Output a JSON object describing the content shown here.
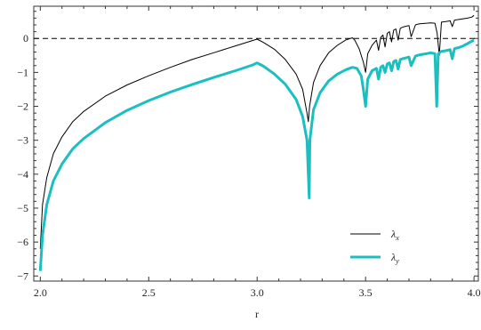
{
  "chart_data": {
    "type": "line",
    "title": "",
    "xlabel": "r",
    "ylabel": "",
    "xlim": [
      1.97,
      4.02
    ],
    "ylim": [
      -7.15,
      0.95
    ],
    "xticks": [
      2.0,
      2.5,
      3.0,
      3.5,
      4.0
    ],
    "xtick_labels": [
      "2.0",
      "2.5",
      "3.0",
      "3.5",
      "4.0"
    ],
    "yticks": [
      0,
      -1,
      -2,
      -3,
      -4,
      -5,
      -6,
      -7
    ],
    "ytick_labels": [
      "0",
      "−1",
      "−2",
      "−3",
      "−4",
      "−5",
      "−6",
      "−7"
    ],
    "reference_line": {
      "y": 0,
      "style": "dashed"
    },
    "legend": {
      "position": "bottom-right"
    },
    "grid": false,
    "series": [
      {
        "name": "λx",
        "name_main": "λ",
        "name_sub": "x",
        "color": "#000000",
        "x": [
          2.0,
          2.01,
          2.03,
          2.06,
          2.1,
          2.15,
          2.2,
          2.3,
          2.4,
          2.5,
          2.6,
          2.7,
          2.8,
          2.9,
          2.98,
          3.0,
          3.03,
          3.08,
          3.13,
          3.18,
          3.21,
          3.23,
          3.236,
          3.242,
          3.26,
          3.29,
          3.33,
          3.37,
          3.41,
          3.44,
          3.45,
          3.47,
          3.49,
          3.5,
          3.51,
          3.53,
          3.55,
          3.56,
          3.57,
          3.58,
          3.59,
          3.6,
          3.61,
          3.62,
          3.63,
          3.64,
          3.65,
          3.66,
          3.67,
          3.68,
          3.7,
          3.71,
          3.73,
          3.74,
          3.75,
          3.78,
          3.8,
          3.82,
          3.83,
          3.84,
          3.85,
          3.87,
          3.89,
          3.9,
          3.91,
          3.92,
          3.95,
          3.97,
          3.99,
          4.0
        ],
        "y": [
          -6.2,
          -4.9,
          -4.1,
          -3.4,
          -2.9,
          -2.45,
          -2.15,
          -1.7,
          -1.37,
          -1.1,
          -0.85,
          -0.62,
          -0.42,
          -0.22,
          -0.06,
          -0.02,
          -0.12,
          -0.32,
          -0.62,
          -1.05,
          -1.5,
          -2.2,
          -2.45,
          -2.0,
          -1.3,
          -0.8,
          -0.42,
          -0.2,
          -0.04,
          0.02,
          -0.05,
          -0.3,
          -0.7,
          -1.0,
          -0.45,
          -0.2,
          -0.05,
          -0.35,
          0.03,
          0.1,
          -0.25,
          0.15,
          0.2,
          -0.1,
          0.25,
          0.28,
          -0.05,
          0.3,
          0.33,
          0.35,
          0.38,
          0.05,
          0.4,
          0.42,
          0.43,
          0.45,
          0.46,
          0.45,
          0.15,
          -0.5,
          0.48,
          0.5,
          0.52,
          0.35,
          0.54,
          0.55,
          0.58,
          0.6,
          0.63,
          0.68
        ]
      },
      {
        "name": "λy",
        "name_main": "λ",
        "name_sub": "y",
        "color": "#1bbfbf",
        "x": [
          2.0,
          2.01,
          2.03,
          2.06,
          2.1,
          2.15,
          2.2,
          2.3,
          2.4,
          2.5,
          2.6,
          2.7,
          2.8,
          2.9,
          2.98,
          3.0,
          3.03,
          3.08,
          3.13,
          3.18,
          3.21,
          3.23,
          3.24,
          3.243,
          3.26,
          3.29,
          3.33,
          3.37,
          3.41,
          3.44,
          3.46,
          3.48,
          3.49,
          3.5,
          3.51,
          3.53,
          3.55,
          3.56,
          3.57,
          3.58,
          3.59,
          3.6,
          3.61,
          3.62,
          3.63,
          3.64,
          3.65,
          3.66,
          3.67,
          3.68,
          3.7,
          3.71,
          3.73,
          3.74,
          3.75,
          3.78,
          3.8,
          3.82,
          3.828,
          3.835,
          3.85,
          3.87,
          3.89,
          3.9,
          3.91,
          3.93,
          3.95,
          3.97,
          3.99,
          4.0
        ],
        "y": [
          -6.85,
          -5.8,
          -4.9,
          -4.2,
          -3.7,
          -3.25,
          -2.95,
          -2.48,
          -2.12,
          -1.83,
          -1.58,
          -1.36,
          -1.15,
          -0.95,
          -0.78,
          -0.72,
          -0.82,
          -1.05,
          -1.35,
          -1.8,
          -2.3,
          -3.0,
          -4.7,
          -3.0,
          -2.1,
          -1.6,
          -1.25,
          -1.05,
          -0.92,
          -0.85,
          -0.88,
          -1.1,
          -1.5,
          -2.0,
          -1.2,
          -0.95,
          -0.88,
          -1.2,
          -0.85,
          -0.8,
          -1.0,
          -0.75,
          -0.72,
          -0.95,
          -0.68,
          -0.65,
          -0.9,
          -0.62,
          -0.6,
          -0.58,
          -0.55,
          -0.8,
          -0.52,
          -0.5,
          -0.48,
          -0.45,
          -0.42,
          -0.45,
          -2.0,
          -0.45,
          -0.38,
          -0.36,
          -0.33,
          -0.6,
          -0.3,
          -0.27,
          -0.22,
          -0.15,
          -0.08,
          -0.05
        ]
      }
    ]
  }
}
